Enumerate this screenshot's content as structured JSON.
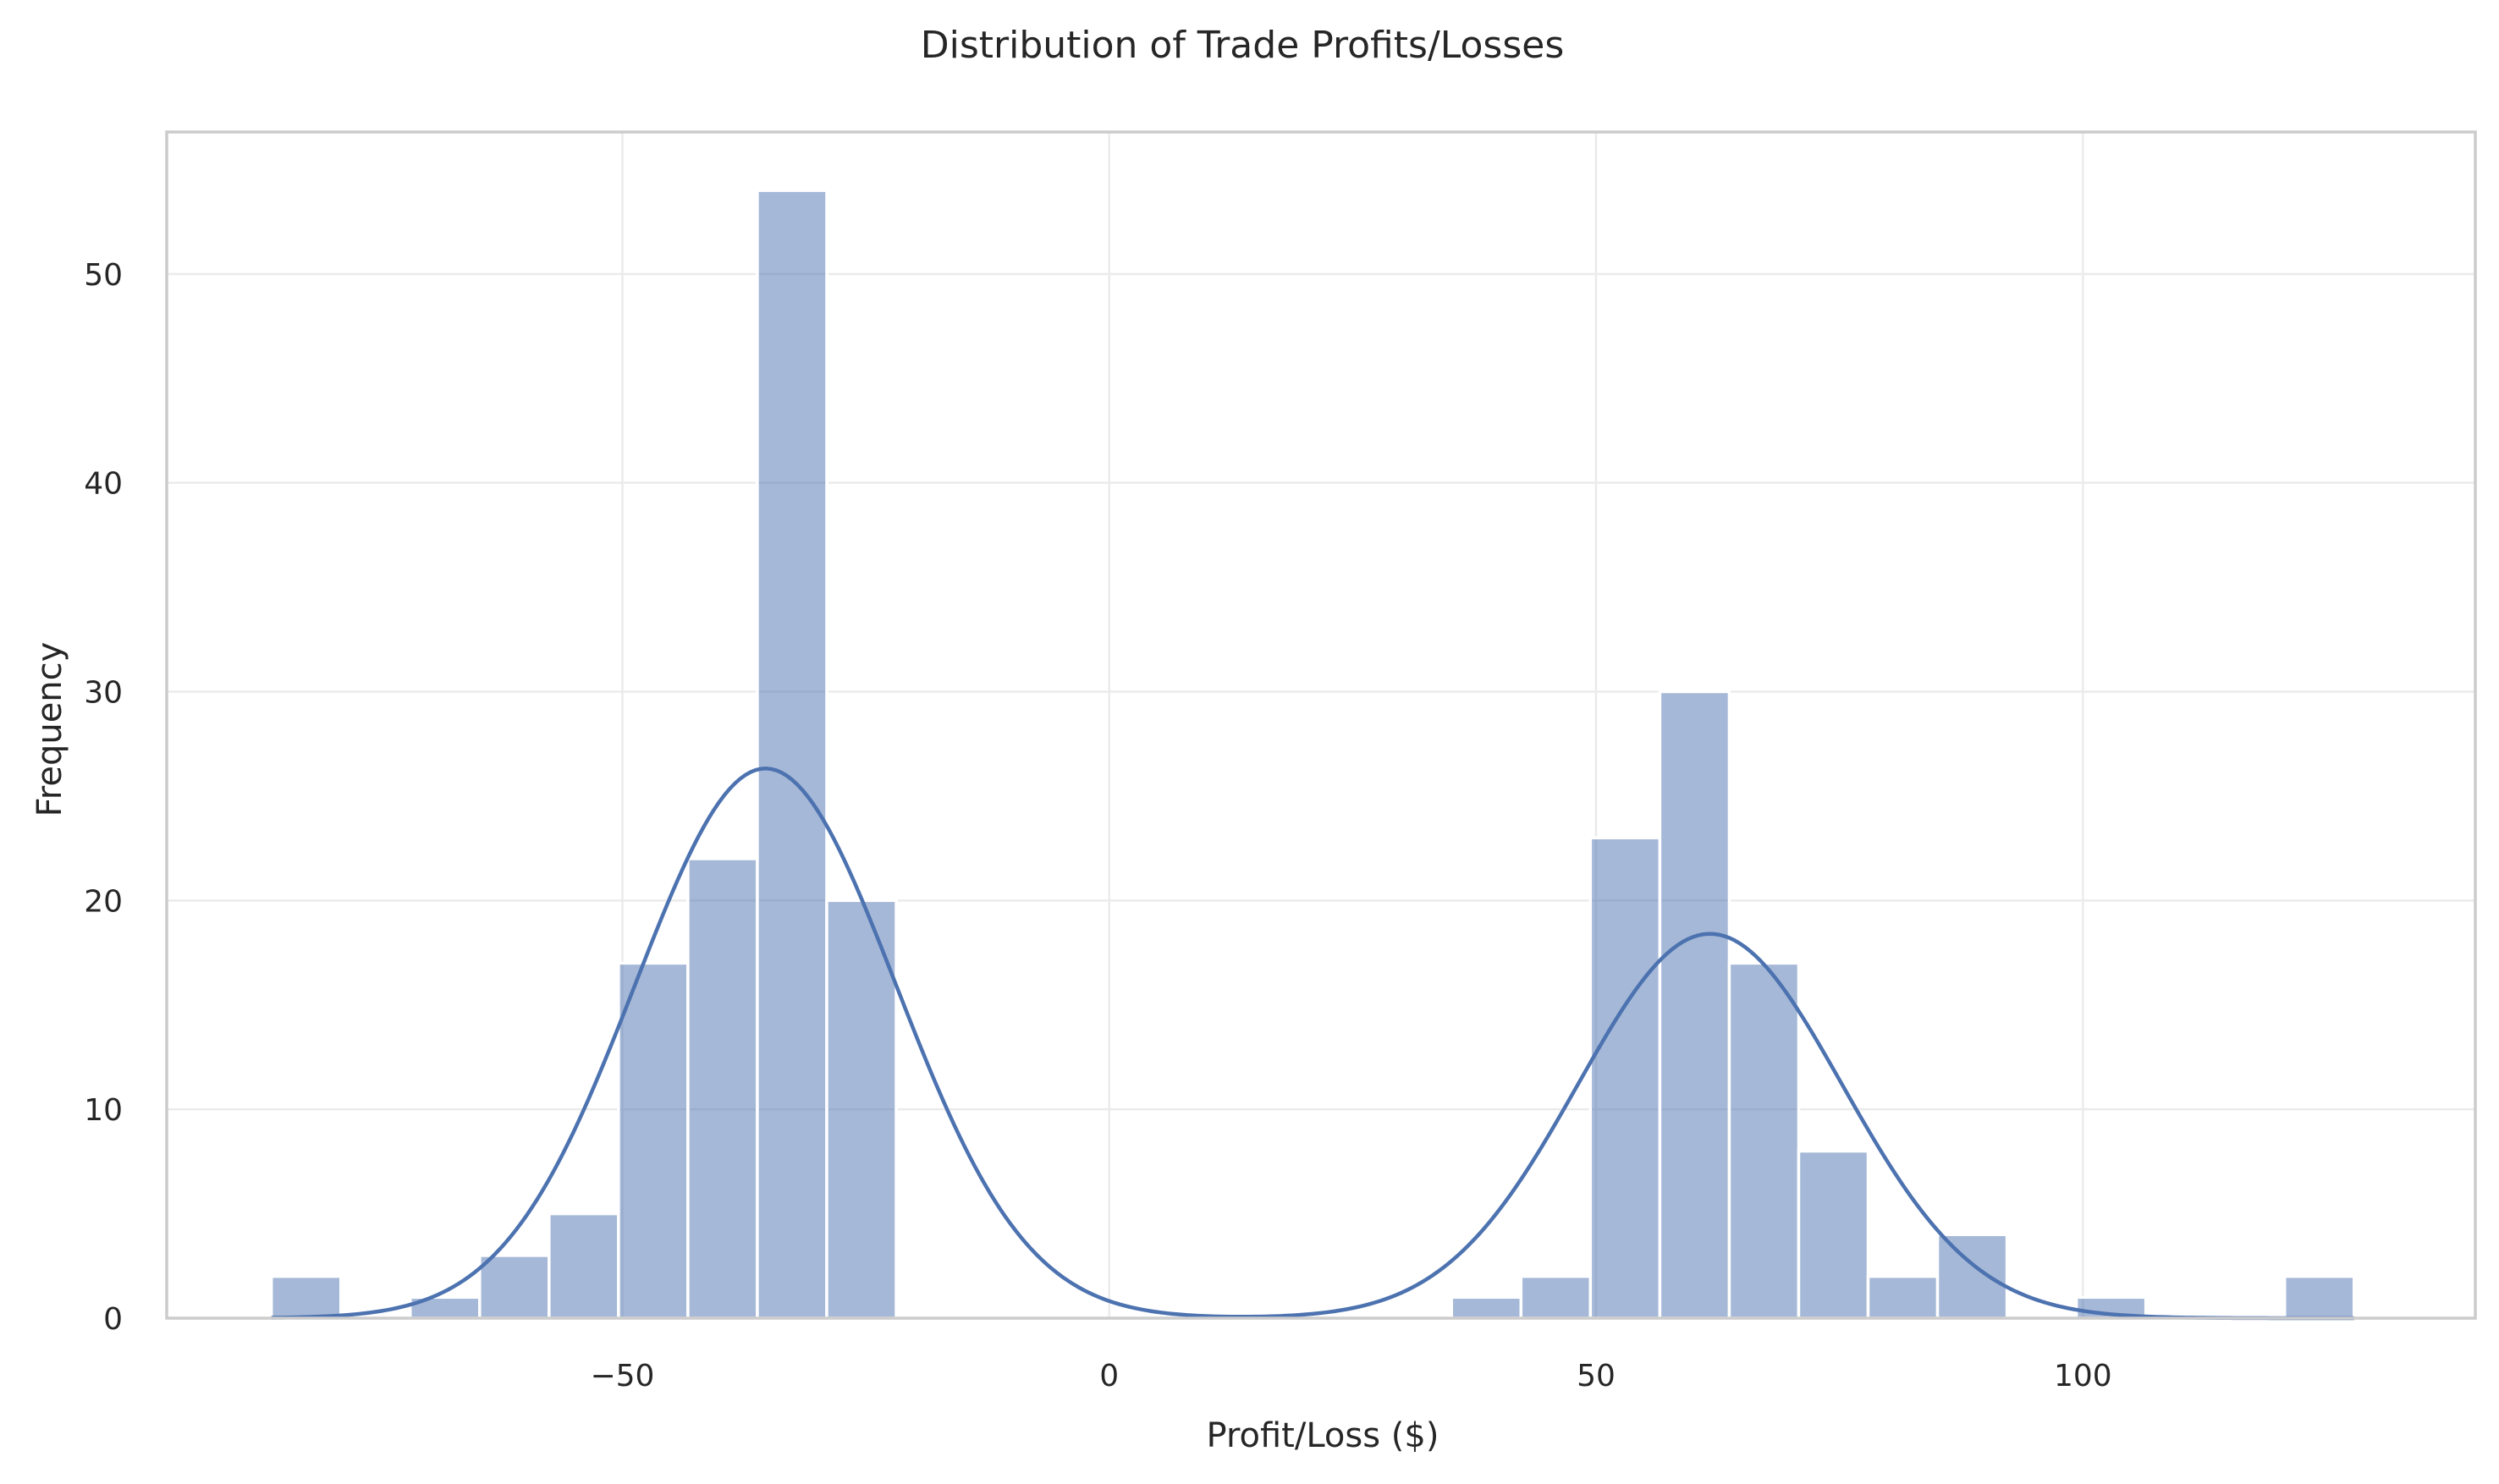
{
  "chart_data": {
    "type": "histogram",
    "title": "Distribution of Trade Profits/Losses",
    "xlabel": "Profit/Loss ($)",
    "ylabel": "Frequency",
    "xlim": [
      -96.8,
      140.3
    ],
    "ylim": [
      0,
      56.8
    ],
    "xticks": [
      -50,
      0,
      50,
      100
    ],
    "xtick_labels": [
      "−50",
      "0",
      "50",
      "100"
    ],
    "yticks": [
      0,
      10,
      20,
      30,
      40,
      50
    ],
    "ytick_labels": [
      "0",
      "10",
      "20",
      "30",
      "40",
      "50"
    ],
    "grid": true,
    "bin_width": 7.13,
    "bins": [
      {
        "start": -86.05,
        "end": -78.92,
        "count": 2
      },
      {
        "start": -71.79,
        "end": -64.66,
        "count": 1
      },
      {
        "start": -64.66,
        "end": -57.53,
        "count": 3
      },
      {
        "start": -57.53,
        "end": -50.4,
        "count": 5
      },
      {
        "start": -50.4,
        "end": -43.27,
        "count": 17
      },
      {
        "start": -43.27,
        "end": -36.14,
        "count": 22
      },
      {
        "start": -36.14,
        "end": -29.01,
        "count": 54
      },
      {
        "start": -29.01,
        "end": -21.88,
        "count": 20
      },
      {
        "start": 35.16,
        "end": 42.29,
        "count": 1
      },
      {
        "start": 42.29,
        "end": 49.42,
        "count": 2
      },
      {
        "start": 49.42,
        "end": 56.55,
        "count": 23
      },
      {
        "start": 56.55,
        "end": 63.68,
        "count": 30
      },
      {
        "start": 63.68,
        "end": 70.81,
        "count": 17
      },
      {
        "start": 70.81,
        "end": 77.94,
        "count": 8
      },
      {
        "start": 77.94,
        "end": 85.07,
        "count": 2
      },
      {
        "start": 85.07,
        "end": 92.2,
        "count": 4
      },
      {
        "start": 99.33,
        "end": 106.46,
        "count": 1
      },
      {
        "start": 120.72,
        "end": 127.85,
        "count": 2
      }
    ],
    "kde": {
      "components": [
        {
          "weight": 124,
          "mean": -35.3,
          "std": 13.4
        },
        {
          "weight": 88,
          "mean": 61.7,
          "std": 13.6
        }
      ],
      "bin_width": 7.13,
      "x_range": [
        -86.05,
        127.85
      ]
    },
    "colors": {
      "bar": "#4c72b0",
      "kde": "#4c72b0",
      "grid": "#ebebeb",
      "frame": "#cccccc"
    }
  }
}
